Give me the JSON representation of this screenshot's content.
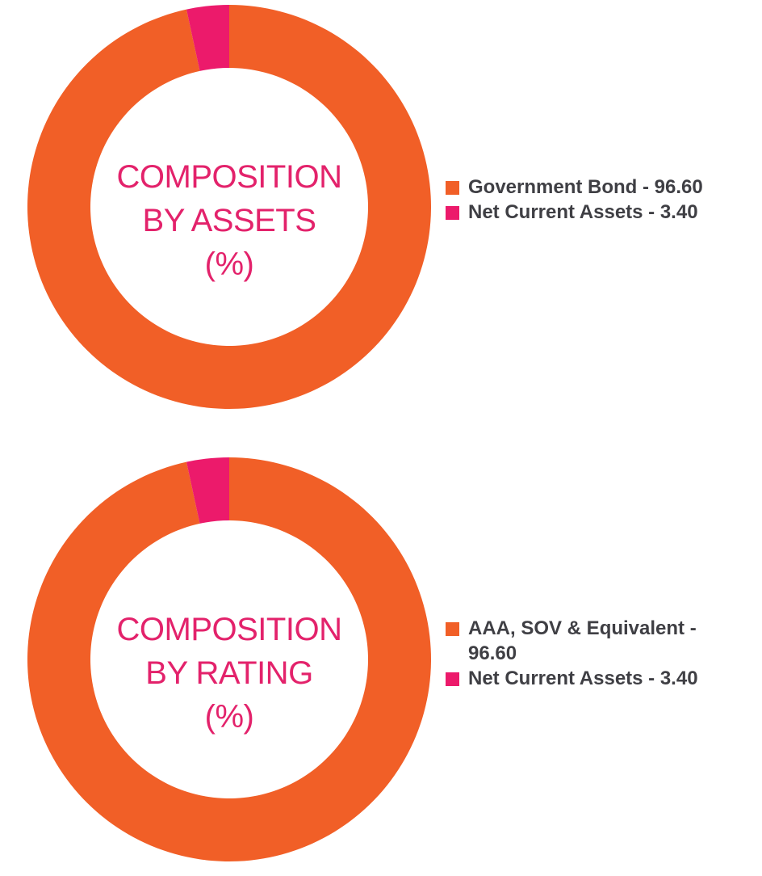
{
  "colors": {
    "orange": "#f15f27",
    "pink": "#ec1a6b",
    "center_text": "#e3226b",
    "legend_text": "#3f3f44"
  },
  "chart_data": [
    {
      "type": "pie",
      "style": "donut",
      "center_label": [
        "COMPOSITION",
        "BY ASSETS",
        "(%)"
      ],
      "slices": [
        {
          "label": "Government Bond - 96.60",
          "value": 96.6,
          "color": "#f15f27"
        },
        {
          "label": "Net Current Assets - 3.40",
          "value": 3.4,
          "color": "#ec1a6b"
        }
      ],
      "legend": {
        "placement": "right",
        "items": [
          "Government Bond - 96.60",
          "Net Current Assets - 3.40"
        ]
      }
    },
    {
      "type": "pie",
      "style": "donut",
      "center_label": [
        "COMPOSITION",
        "BY RATING",
        "(%)"
      ],
      "slices": [
        {
          "label": "AAA, SOV & Equivalent - 96.60",
          "value": 96.6,
          "color": "#f15f27"
        },
        {
          "label": "Net Current Assets - 3.40",
          "value": 3.4,
          "color": "#ec1a6b"
        }
      ],
      "legend": {
        "placement": "right",
        "items": [
          "AAA, SOV & Equivalent - 96.60",
          "Net Current Assets - 3.40"
        ]
      }
    }
  ]
}
